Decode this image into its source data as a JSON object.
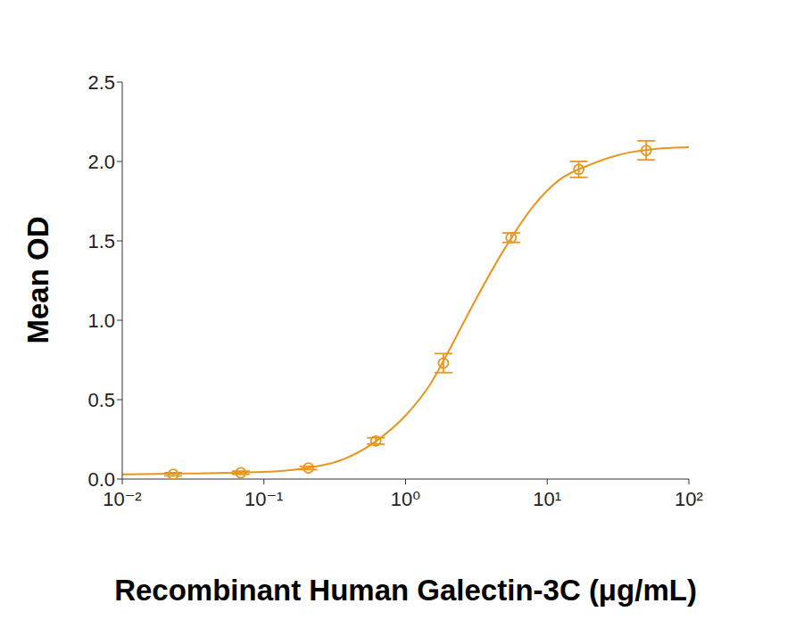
{
  "chart_data": {
    "type": "scatter",
    "x_label": "Recombinant Human Galectin-3C (μg/mL)",
    "y_label": "Mean OD",
    "log": "x",
    "grid": false,
    "xlim": [
      0.01,
      100
    ],
    "xticks": [
      {
        "value": 0.01,
        "label": "10⁻²"
      },
      {
        "value": 0.1,
        "label": "10⁻¹"
      },
      {
        "value": 1,
        "label": "10⁰"
      },
      {
        "value": 10,
        "label": "10¹"
      },
      {
        "value": 100,
        "label": "10²"
      }
    ],
    "ylim": [
      0,
      2.5
    ],
    "yticks": [
      {
        "value": 0,
        "label": "0.0"
      },
      0.5,
      {
        "value": 1,
        "label": "1.0"
      },
      1.5,
      {
        "value": 2,
        "label": "2.0"
      },
      2.5
    ],
    "series": [
      {
        "type": "scatter",
        "color": "#e8961e",
        "marker": "circle",
        "x": [
          0.0229,
          0.0686,
          0.206,
          0.617,
          1.85,
          5.56,
          16.7,
          50
        ],
        "values": [
          0.03,
          0.04,
          0.07,
          0.24,
          0.73,
          1.52,
          1.95,
          2.07
        ],
        "error": [
          0.01,
          0.01,
          0.01,
          0.02,
          0.06,
          0.03,
          0.05,
          0.06
        ]
      },
      {
        "type": "line",
        "color": "#e8961e",
        "line_style": "solid",
        "x": [
          0.01,
          0.03,
          0.1,
          0.3,
          0.6,
          1,
          1.5,
          2,
          3,
          5,
          8,
          12,
          20,
          35,
          60,
          100
        ],
        "values": [
          0.03,
          0.035,
          0.045,
          0.1,
          0.23,
          0.4,
          0.6,
          0.8,
          1.1,
          1.45,
          1.72,
          1.88,
          1.98,
          2.05,
          2.08,
          2.09
        ]
      }
    ]
  }
}
